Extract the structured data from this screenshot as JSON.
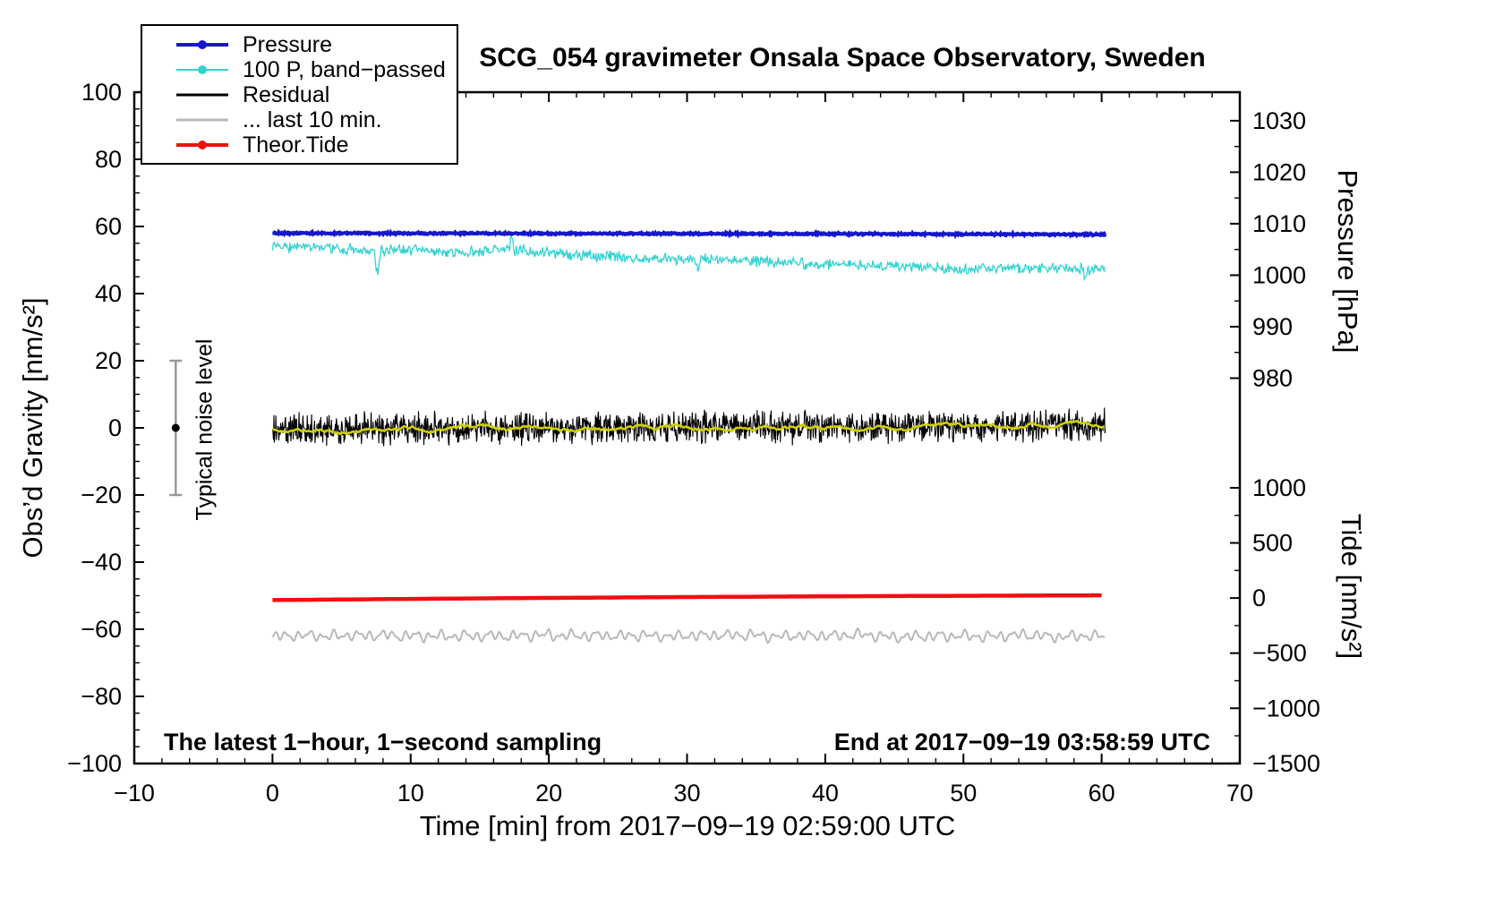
{
  "title": "SCG_054 gravimeter Onsala Space Observatory, Sweden",
  "annotations": {
    "sampling_note": "The latest 1−hour, 1−second sampling",
    "end_note": "End at 2017−09−19 03:58:59 UTC",
    "noise_label": "Typical noise level"
  },
  "legend": {
    "items": [
      {
        "label": "Pressure",
        "color": "#1616cc",
        "marker": "dot",
        "width": 4
      },
      {
        "label": "100 P, band−passed",
        "color": "#35d2d2",
        "marker": "dot",
        "width": 2
      },
      {
        "label": "Residual",
        "color": "#000000",
        "marker": "none",
        "width": 3
      },
      {
        "label": "... last 10 min.",
        "color": "#b8b8b8",
        "marker": "none",
        "width": 3
      },
      {
        "label": "Theor.Tide",
        "color": "#ee1111",
        "marker": "dot",
        "width": 4
      }
    ]
  },
  "axes": {
    "x": {
      "label": "Time [min] from 2017−09−19 02:59:00 UTC",
      "min": -10,
      "max": 70,
      "major_ticks": [
        -10,
        0,
        10,
        20,
        30,
        40,
        50,
        60,
        70
      ],
      "minor_step": 2
    },
    "y_left": {
      "label": "Obs’d Gravity [nm/s²]",
      "min": -100,
      "max": 100,
      "major_ticks": [
        -100,
        -80,
        -60,
        -40,
        -20,
        0,
        20,
        40,
        60,
        80,
        100
      ],
      "minor_step": 5
    },
    "y_pressure": {
      "label": "Pressure [hPa]",
      "major_ticks": [
        1030,
        1020,
        1010,
        1000,
        990,
        980
      ],
      "minor_step": 5,
      "map": {
        "hpa_ref": 1030,
        "gravity_ref": 91.5,
        "gravity_per_hpa": 1.534
      }
    },
    "y_tide": {
      "label": "Tide [nm/s²]",
      "major_ticks": [
        1000,
        500,
        0,
        -500,
        -1000,
        -1500
      ],
      "minor_step": 250,
      "map": {
        "tide_ref": 0,
        "gravity_ref": -50.7,
        "gravity_per_unit": 0.03284
      }
    }
  },
  "chart_data": {
    "type": "line",
    "title": "SCG_054 gravimeter Onsala Space Observatory, Sweden",
    "x_unit": "minutes from 2017-09-19 02:59:00 UTC",
    "x_range_minutes": [
      0,
      60.3
    ],
    "grid": false,
    "legend_position": "top-left",
    "series": [
      {
        "id": "residual_last_10_min",
        "label": "... last 10 min.",
        "color": "#b8b8b8",
        "axis": "left",
        "width": 2,
        "baseline_gravity_units": [
          [
            0,
            -62.0
          ],
          [
            30,
            -61.9
          ],
          [
            60,
            -61.8
          ]
        ],
        "noise_amp": 1.7,
        "noise_type": "sines",
        "step": 0.08
      },
      {
        "id": "theor_tide",
        "label": "Theor.Tide",
        "color": "#ee1111",
        "axis": "right-tide",
        "width": 4.5,
        "approx_values_tide_units": {
          "start": -18,
          "end": 24
        },
        "baseline_gravity_units": [
          [
            0,
            -51.3
          ],
          [
            15,
            -50.8
          ],
          [
            30,
            -50.4
          ],
          [
            45,
            -50.1
          ],
          [
            60,
            -49.9
          ]
        ],
        "noise_amp": 0,
        "noise_type": "none",
        "step": 0.5
      },
      {
        "id": "band_passed",
        "label": "100 P, band−passed",
        "color": "#35d2d2",
        "axis": "left",
        "width": 1.3,
        "baseline_gravity_units": [
          [
            0,
            53.6
          ],
          [
            3,
            53.9
          ],
          [
            7,
            52.6
          ],
          [
            10,
            52.9
          ],
          [
            14,
            52.3
          ],
          [
            17,
            53.3
          ],
          [
            20,
            51.9
          ],
          [
            24,
            51.2
          ],
          [
            28,
            50.3
          ],
          [
            32,
            50.4
          ],
          [
            36,
            49.4
          ],
          [
            40,
            48.7
          ],
          [
            44,
            48.3
          ],
          [
            48,
            47.7
          ],
          [
            52,
            47.4
          ],
          [
            56,
            47.7
          ],
          [
            60,
            47.3
          ]
        ],
        "noise_amp": 1.4,
        "noise_type": "white",
        "step": 0.06,
        "spikes": [
          {
            "x": 7.6,
            "dy": -7.5,
            "w": 0.25
          },
          {
            "x": 17.3,
            "dy": 4.5,
            "w": 0.2
          },
          {
            "x": 30.8,
            "dy": -4.5,
            "w": 0.2
          },
          {
            "x": 58.8,
            "dy": -3.5,
            "w": 0.2
          }
        ]
      },
      {
        "id": "pressure",
        "label": "Pressure",
        "color": "#1616cc",
        "axis": "right-pressure",
        "width": 4,
        "approx_values_hpa": {
          "start": 1008.0,
          "end": 1007.7
        },
        "baseline_gravity_units": [
          [
            0,
            58.0
          ],
          [
            10,
            57.95
          ],
          [
            20,
            57.9
          ],
          [
            30,
            57.85
          ],
          [
            40,
            57.8
          ],
          [
            50,
            57.7
          ],
          [
            60,
            57.6
          ]
        ],
        "noise_amp": 0.22,
        "noise_type": "white",
        "step": 0.05
      },
      {
        "id": "residual",
        "label": "Residual",
        "color": "#000000",
        "axis": "left",
        "width": 1.1,
        "baseline_gravity_units": [
          [
            0,
            -0.4
          ],
          [
            15,
            0.0
          ],
          [
            30,
            0.1
          ],
          [
            45,
            0.2
          ],
          [
            60,
            0.9
          ]
        ],
        "noise_amp": 4.0,
        "noise_type": "white",
        "step": 0.035
      },
      {
        "id": "residual_smoothed",
        "label": "",
        "color": "#cfcf00",
        "axis": "left",
        "width": 2.6,
        "baseline_gravity_units": [
          [
            0,
            -0.6
          ],
          [
            10,
            -0.2
          ],
          [
            20,
            0.0
          ],
          [
            30,
            0.1
          ],
          [
            40,
            0.1
          ],
          [
            50,
            0.6
          ],
          [
            60,
            1.3
          ]
        ],
        "noise_amp": 0.55,
        "noise_type": "filtered",
        "step": 0.1
      }
    ],
    "noise_marker": {
      "x": -7,
      "center": 0,
      "half_range": 20,
      "bar_color": "#999999",
      "dot_color": "#000000"
    }
  }
}
